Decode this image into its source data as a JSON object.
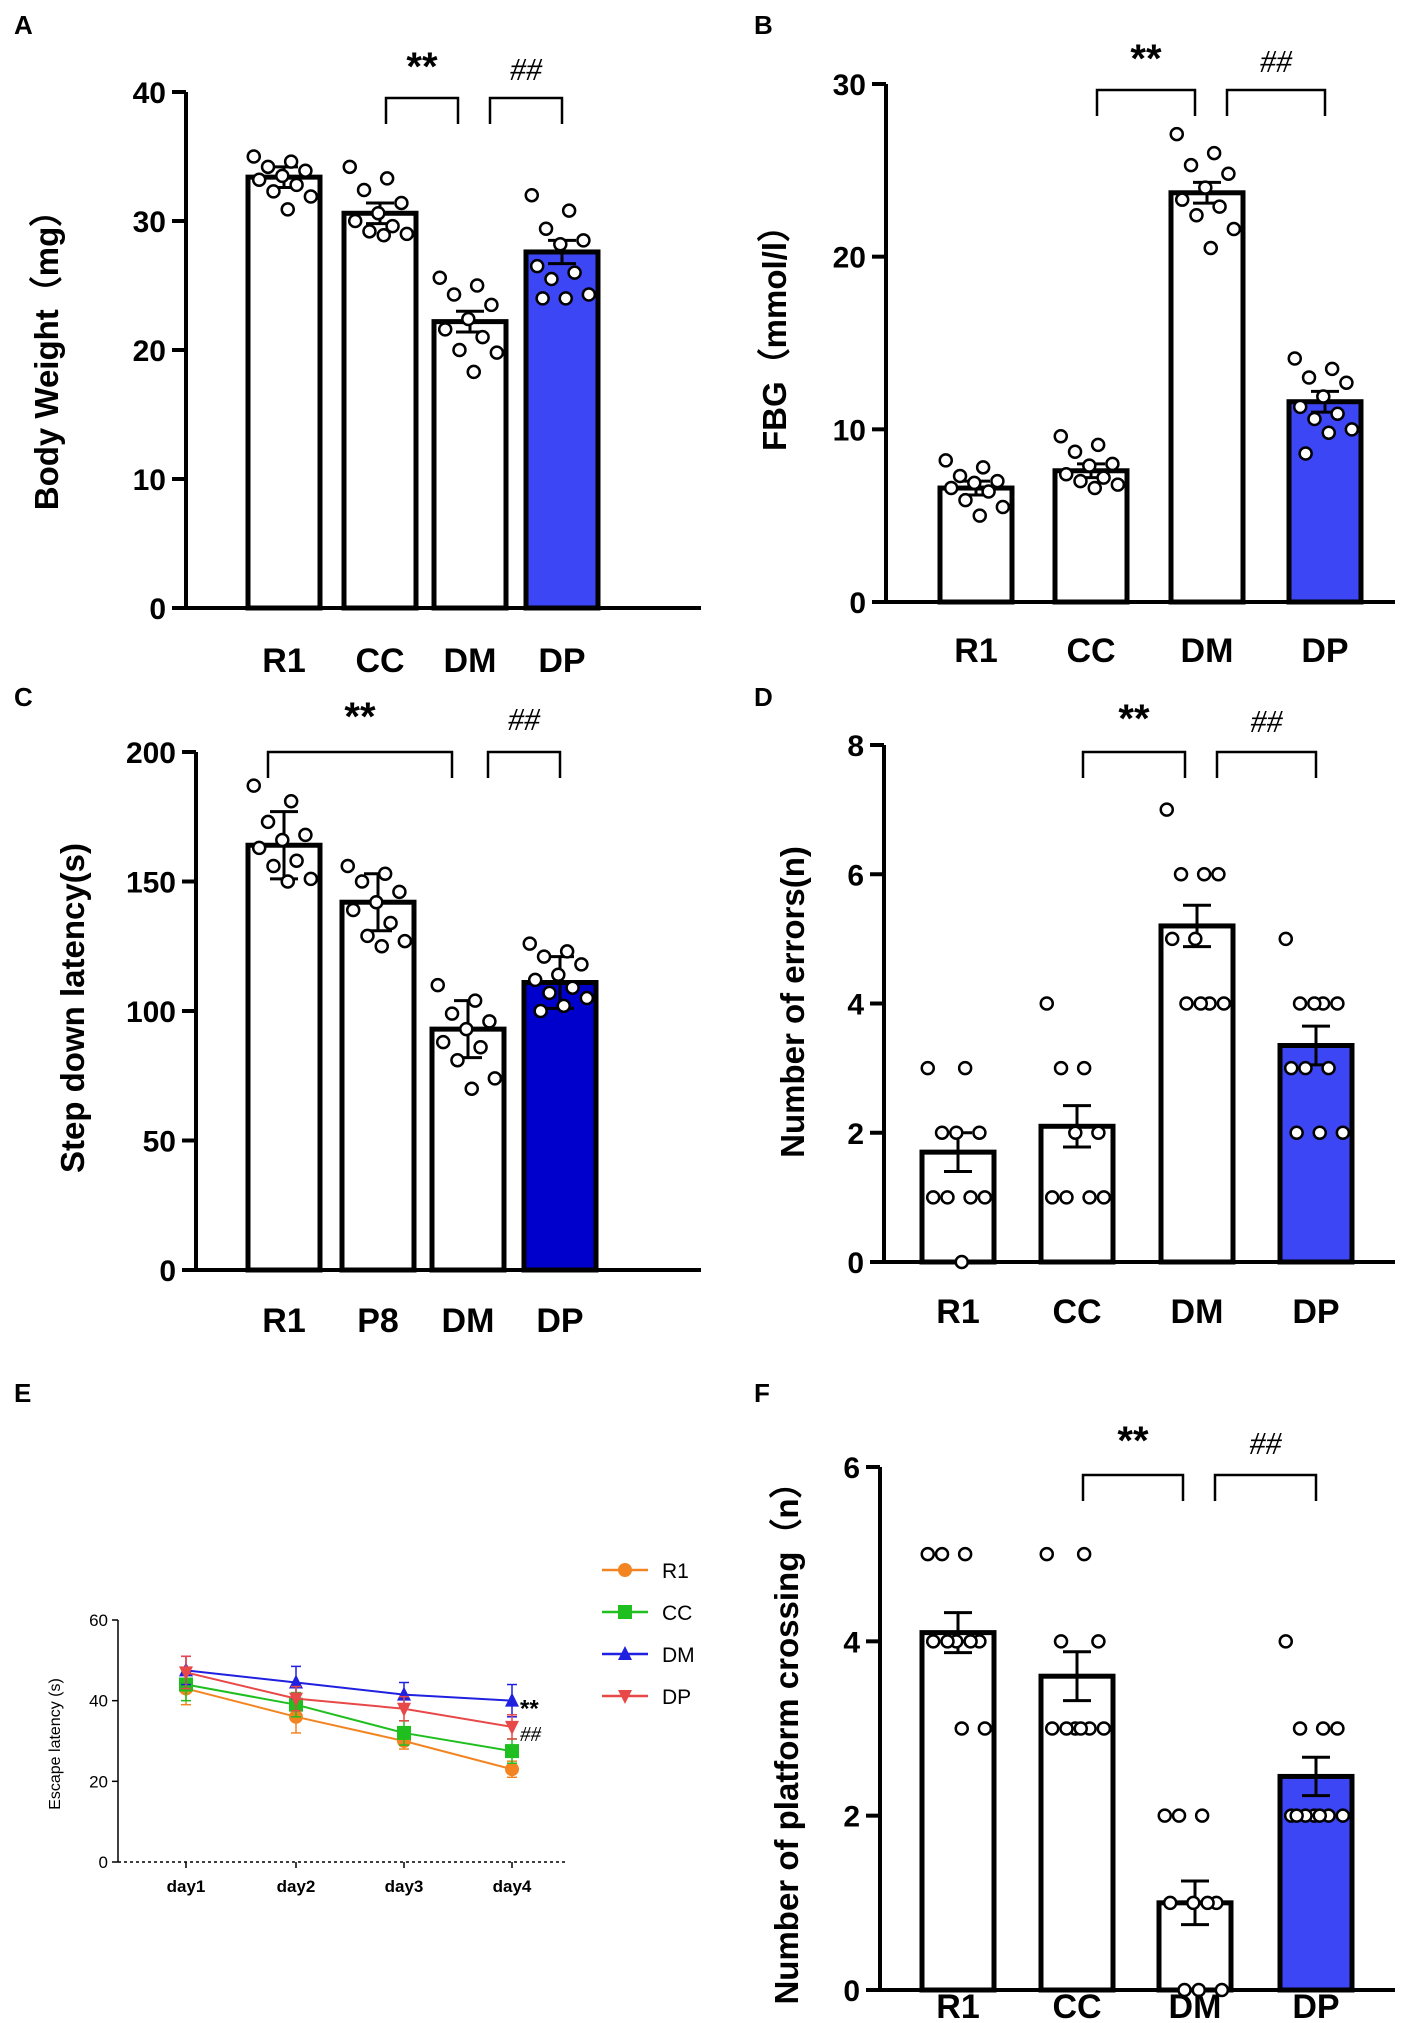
{
  "chart_data": [
    {
      "type": "bar",
      "panel": "A",
      "ylabel": "Body Weight（mg）",
      "categories": [
        "R1",
        "CC",
        "DM",
        "DP"
      ],
      "values": [
        33.4,
        30.6,
        22.2,
        27.6
      ],
      "errors": [
        0.8,
        0.8,
        0.8,
        0.9
      ],
      "colors": [
        "#ffffff",
        "#ffffff",
        "#ffffff",
        "#3d46f4"
      ],
      "points": [
        [
          35.0,
          34.6,
          34.2,
          33.9,
          33.5,
          33.2,
          32.8,
          32.3,
          31.9,
          30.9
        ],
        [
          34.2,
          33.3,
          32.4,
          31.4,
          30.6,
          30.0,
          29.6,
          29.2,
          29.0,
          28.9
        ],
        [
          25.6,
          25.0,
          24.3,
          23.5,
          22.4,
          21.6,
          21.0,
          20.0,
          19.8,
          18.3
        ],
        [
          32.0,
          30.8,
          29.4,
          28.5,
          28.2,
          26.5,
          26.0,
          25.5,
          24.3,
          24.0,
          24.0
        ]
      ],
      "ylim": [
        0,
        40
      ],
      "yticks": [
        "0",
        "10",
        "20",
        "30",
        "40"
      ],
      "sig": [
        {
          "from": 1,
          "to": 2,
          "text": "**"
        },
        {
          "from": 2,
          "to": 3,
          "text": "##"
        }
      ]
    },
    {
      "type": "bar",
      "panel": "B",
      "ylabel": "FBG（mmol/l）",
      "categories": [
        "R1",
        "CC",
        "DM",
        "DP"
      ],
      "values": [
        6.6,
        7.6,
        23.7,
        11.6
      ],
      "errors": [
        0.4,
        0.4,
        0.6,
        0.6
      ],
      "colors": [
        "#ffffff",
        "#ffffff",
        "#ffffff",
        "#3d46f4"
      ],
      "points": [
        [
          8.2,
          7.8,
          7.3,
          7.0,
          6.9,
          6.6,
          6.4,
          5.9,
          5.5,
          5.0
        ],
        [
          9.6,
          9.1,
          8.7,
          8.0,
          7.9,
          7.4,
          7.2,
          7.0,
          6.8,
          6.6
        ],
        [
          27.1,
          26.0,
          25.3,
          24.8,
          24.0,
          23.3,
          22.9,
          22.4,
          21.6,
          20.5
        ],
        [
          14.1,
          13.5,
          13.0,
          12.7,
          11.9,
          11.3,
          10.9,
          10.6,
          10.0,
          9.8,
          8.6
        ]
      ],
      "ylim": [
        0,
        30
      ],
      "yticks": [
        "0",
        "10",
        "20",
        "30"
      ],
      "sig": [
        {
          "from": 1,
          "to": 2,
          "text": "**"
        },
        {
          "from": 2,
          "to": 3,
          "text": "##"
        }
      ]
    },
    {
      "type": "bar",
      "panel": "C",
      "ylabel": "Step down latency(s)",
      "categories": [
        "R1",
        "P8",
        "DM",
        "DP"
      ],
      "values": [
        164,
        142,
        93,
        111
      ],
      "errors": [
        13,
        11,
        11,
        10
      ],
      "colors": [
        "#ffffff",
        "#ffffff",
        "#ffffff",
        "#0000cd"
      ],
      "points": [
        [
          187,
          181,
          173,
          168,
          166,
          163,
          158,
          156,
          151,
          150
        ],
        [
          156,
          153,
          150,
          146,
          142,
          139,
          134,
          129,
          127,
          125
        ],
        [
          110,
          104,
          99,
          96,
          93,
          88,
          86,
          81,
          74,
          70
        ],
        [
          126,
          123,
          121,
          118,
          114,
          112,
          109,
          107,
          105,
          102,
          100
        ]
      ],
      "ylim": [
        0,
        200
      ],
      "yticks": [
        "0",
        "50",
        "100",
        "150",
        "200"
      ],
      "sig": [
        {
          "from": 0,
          "to": 2,
          "text": "**"
        },
        {
          "from": 2,
          "to": 3,
          "text": "##"
        }
      ]
    },
    {
      "type": "bar",
      "panel": "D",
      "ylabel": "Number of errors(n)",
      "categories": [
        "R1",
        "CC",
        "DM",
        "DP"
      ],
      "values": [
        1.7,
        2.1,
        5.2,
        3.35
      ],
      "errors": [
        0.3,
        0.32,
        0.32,
        0.3
      ],
      "colors": [
        "#ffffff",
        "#ffffff",
        "#ffffff",
        "#3d46f4"
      ],
      "points": [
        [
          3,
          3,
          2,
          2,
          2,
          1,
          1,
          1,
          1,
          0
        ],
        [
          4,
          3,
          3,
          2,
          2,
          1,
          1,
          1,
          1
        ],
        [
          7,
          6,
          6,
          6,
          5,
          5,
          4,
          4,
          4,
          4
        ],
        [
          5,
          4,
          4,
          4,
          4,
          3,
          3,
          3,
          2,
          2,
          2
        ]
      ],
      "ylim": [
        0,
        8
      ],
      "yticks": [
        "0",
        "2",
        "4",
        "6",
        "8"
      ],
      "sig": [
        {
          "from": 1,
          "to": 2,
          "text": "**"
        },
        {
          "from": 2,
          "to": 3,
          "text": "##"
        }
      ]
    },
    {
      "type": "line",
      "panel": "E",
      "ylabel": "Escape latency (s)",
      "x": [
        "day1",
        "day2",
        "day3",
        "day4"
      ],
      "series": [
        {
          "name": "R1",
          "values": [
            43,
            36,
            30,
            23
          ],
          "errors": [
            4,
            4,
            2,
            2
          ],
          "color": "#f28522",
          "marker": "circle"
        },
        {
          "name": "CC",
          "values": [
            44,
            39,
            32,
            27.5
          ],
          "errors": [
            4,
            3,
            3,
            3
          ],
          "color": "#1fbf1f",
          "marker": "square"
        },
        {
          "name": "DM",
          "values": [
            47.5,
            44.5,
            41.5,
            40
          ],
          "errors": [
            3.5,
            4,
            3,
            4
          ],
          "color": "#2020e0",
          "marker": "triangle"
        },
        {
          "name": "DP",
          "values": [
            47,
            40.5,
            38,
            33.5
          ],
          "errors": [
            4,
            3,
            3,
            3
          ],
          "color": "#e84848",
          "marker": "triangle-down"
        }
      ],
      "ylim": [
        0,
        60
      ],
      "yticks": [
        "0",
        "20",
        "40",
        "60"
      ],
      "annotations": [
        {
          "series": "DM",
          "text": "**"
        },
        {
          "series": "DP",
          "text": "##"
        }
      ]
    },
    {
      "type": "bar",
      "panel": "F",
      "ylabel": "Number of platform crossing（n）",
      "categories": [
        "R1",
        "CC",
        "DM",
        "DP"
      ],
      "values": [
        4.1,
        3.6,
        1.0,
        2.45
      ],
      "errors": [
        0.23,
        0.28,
        0.25,
        0.22
      ],
      "colors": [
        "#ffffff",
        "#ffffff",
        "#ffffff",
        "#3d46f4"
      ],
      "points": [
        [
          5,
          5,
          5,
          4,
          4,
          4,
          4,
          4,
          3,
          3
        ],
        [
          5,
          5,
          4,
          4,
          3,
          3,
          3,
          3,
          3,
          3
        ],
        [
          2,
          2,
          2,
          1,
          1,
          1,
          1,
          0,
          0,
          0
        ],
        [
          4,
          3,
          3,
          3,
          2,
          2,
          2,
          2,
          2,
          2,
          2
        ]
      ],
      "ylim": [
        0,
        6
      ],
      "yticks": [
        "0",
        "2",
        "4",
        "6"
      ],
      "sig": [
        {
          "from": 1,
          "to": 2,
          "text": "**"
        },
        {
          "from": 2,
          "to": 3,
          "text": "##"
        }
      ]
    }
  ]
}
